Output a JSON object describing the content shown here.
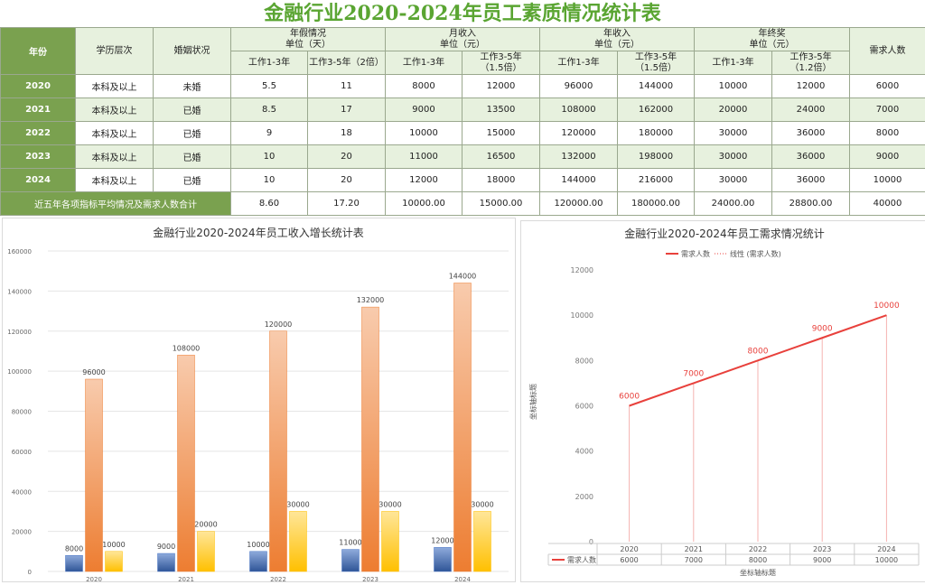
{
  "title": "金融行业2020-2024年员工素质情况统计表",
  "table": {
    "headers": {
      "year": "年份",
      "edu": "学历层次",
      "marital": "婚姻状况",
      "leave": "年假情况",
      "leave_unit": "单位（天）",
      "monthly": "月收入",
      "monthly_unit": "单位（元）",
      "annual": "年收入",
      "annual_unit": "单位（元）",
      "bonus": "年终奖",
      "bonus_unit": "单位（元）",
      "demand": "需求人数",
      "work13": "工作1-3年",
      "leave35": "工作3-5年（2倍）",
      "m35a": "工作3-5年",
      "m35b": "（1.5倍）",
      "a35a": "工作3-5年",
      "a35b": "（1.5倍）",
      "b35a": "工作3-5年",
      "b35b": "（1.2倍）"
    },
    "rows": [
      {
        "year": "2020",
        "edu": "本科及以上",
        "marital": "未婚",
        "leave1": "5.5",
        "leave2": "11",
        "m1": "8000",
        "m2": "12000",
        "a1": "96000",
        "a2": "144000",
        "b1": "10000",
        "b2": "12000",
        "demand": "6000"
      },
      {
        "year": "2021",
        "edu": "本科及以上",
        "marital": "已婚",
        "leave1": "8.5",
        "leave2": "17",
        "m1": "9000",
        "m2": "13500",
        "a1": "108000",
        "a2": "162000",
        "b1": "20000",
        "b2": "24000",
        "demand": "7000"
      },
      {
        "year": "2022",
        "edu": "本科及以上",
        "marital": "已婚",
        "leave1": "9",
        "leave2": "18",
        "m1": "10000",
        "m2": "15000",
        "a1": "120000",
        "a2": "180000",
        "b1": "30000",
        "b2": "36000",
        "demand": "8000"
      },
      {
        "year": "2023",
        "edu": "本科及以上",
        "marital": "已婚",
        "leave1": "10",
        "leave2": "20",
        "m1": "11000",
        "m2": "16500",
        "a1": "132000",
        "a2": "198000",
        "b1": "30000",
        "b2": "36000",
        "demand": "9000"
      },
      {
        "year": "2024",
        "edu": "本科及以上",
        "marital": "已婚",
        "leave1": "10",
        "leave2": "20",
        "m1": "12000",
        "m2": "18000",
        "a1": "144000",
        "a2": "216000",
        "b1": "30000",
        "b2": "36000",
        "demand": "10000"
      }
    ],
    "footer": {
      "label": "近五年各项指标平均情况及需求人数合计",
      "leave1": "8.60",
      "leave2": "17.20",
      "m1": "10000.00",
      "m2": "15000.00",
      "a1": "120000.00",
      "a2": "180000.00",
      "b1": "24000.00",
      "b2": "28800.00",
      "demand": "40000"
    }
  },
  "chart_data": [
    {
      "type": "bar",
      "title": "金融行业2020-2024年员工收入增长统计表",
      "categories": [
        "2020",
        "2021",
        "2022",
        "2023",
        "2024"
      ],
      "series": [
        {
          "values": [
            8000,
            9000,
            10000,
            11000,
            12000
          ],
          "color": "#4472c4"
        },
        {
          "values": [
            96000,
            108000,
            120000,
            132000,
            144000
          ],
          "color": "#ed7d31"
        },
        {
          "values": [
            10000,
            20000,
            30000,
            30000,
            30000
          ],
          "color": "#ffc000"
        }
      ],
      "ylim": [
        0,
        160000
      ],
      "yticks": [
        "0",
        "20000",
        "40000",
        "60000",
        "80000",
        "100000",
        "120000",
        "140000",
        "160000"
      ]
    },
    {
      "type": "line",
      "title": "金融行业2020-2024年员工需求情况统计",
      "categories": [
        "2020",
        "2021",
        "2022",
        "2023",
        "2024"
      ],
      "series": [
        {
          "name": "需求人数",
          "values": [
            6000,
            7000,
            8000,
            9000,
            10000
          ],
          "color": "#e8413c"
        }
      ],
      "legend": [
        "需求人数",
        "线性 (需求人数)"
      ],
      "legend_position": "top",
      "ylim": [
        0,
        12000
      ],
      "yticks": [
        "0",
        "2000",
        "4000",
        "6000",
        "8000",
        "10000",
        "12000"
      ],
      "xlabel": "坐标轴标题",
      "ylabel": "坐标轴标题",
      "data_table_label": "需求人数"
    }
  ]
}
